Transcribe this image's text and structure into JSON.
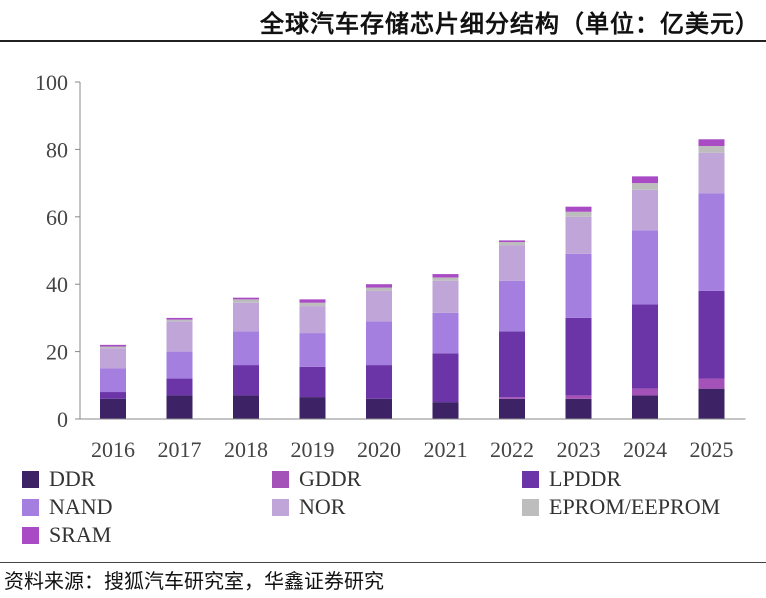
{
  "chart_data": {
    "type": "bar",
    "stacked": true,
    "title": "全球汽车存储芯片细分结构（单位：亿美元）",
    "xlabel": "",
    "ylabel": "",
    "ylim": [
      0,
      100
    ],
    "yticks": [
      0,
      20,
      40,
      60,
      80,
      100
    ],
    "grid": false,
    "legend_position": "bottom",
    "categories": [
      "2016",
      "2017",
      "2018",
      "2019",
      "2020",
      "2021",
      "2022",
      "2023",
      "2024",
      "2025"
    ],
    "series": [
      {
        "name": "DDR",
        "color": "#3d2266",
        "values": [
          6,
          7,
          7,
          6.5,
          6,
          5,
          6,
          6,
          7,
          9
        ]
      },
      {
        "name": "GDDR",
        "color": "#a552b8",
        "values": [
          0,
          0,
          0,
          0,
          0,
          0,
          0.5,
          1,
          2,
          3
        ]
      },
      {
        "name": "LPDDR",
        "color": "#6b35a8",
        "values": [
          2,
          5,
          9,
          9,
          10,
          14.5,
          19.5,
          23,
          25,
          26
        ]
      },
      {
        "name": "NAND",
        "color": "#a57fe0",
        "values": [
          7,
          8,
          10,
          10,
          13,
          12,
          15,
          19,
          22,
          29
        ]
      },
      {
        "name": "NOR",
        "color": "#bfa5d8",
        "values": [
          6,
          9,
          8.5,
          8,
          9,
          9.5,
          10.5,
          11,
          12,
          12
        ]
      },
      {
        "name": "EPROM/EEPROM",
        "color": "#bdbdbd",
        "values": [
          0.5,
          0.5,
          1,
          1,
          1,
          1,
          1,
          1.5,
          2,
          2
        ]
      },
      {
        "name": "SRAM",
        "color": "#a84bc4",
        "values": [
          0.5,
          0.5,
          0.5,
          1,
          1,
          1,
          0.5,
          1.5,
          2,
          2
        ]
      }
    ]
  },
  "source": "资料来源：搜狐汽车研究室，华鑫证券研究"
}
